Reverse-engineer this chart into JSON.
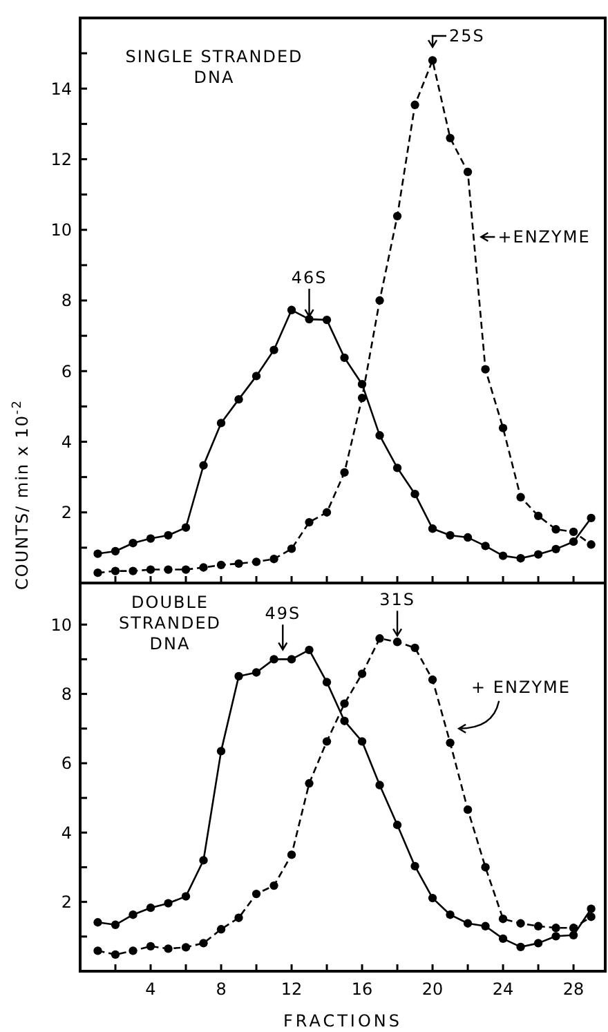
{
  "chart_data": [
    {
      "type": "line",
      "ylabel": "COUNTS/ min x 10$^{-2}$",
      "marker": "circle",
      "grid": false,
      "tick_labels": "y",
      "x": [
        1,
        2,
        3,
        4,
        5,
        6,
        7,
        8,
        9,
        10,
        11,
        12,
        13,
        14,
        15,
        16,
        17,
        18,
        19,
        20,
        21,
        22,
        23,
        24,
        25,
        26,
        27,
        28,
        29
      ],
      "xlim": [
        0,
        29.8
      ],
      "xticks": [
        {
          "value": 2,
          "label": null
        },
        4,
        {
          "value": 6,
          "label": null
        },
        8,
        {
          "value": 10,
          "label": null
        },
        12,
        {
          "value": 14,
          "label": null
        },
        16,
        {
          "value": 18,
          "label": null
        },
        20,
        {
          "value": 22,
          "label": null
        },
        24,
        {
          "value": 26,
          "label": null
        },
        28
      ],
      "ylim": [
        0,
        16
      ],
      "yticks": [
        {
          "value": 1,
          "label": null
        },
        2,
        {
          "value": 3,
          "label": null
        },
        4,
        {
          "value": 5,
          "label": null
        },
        6,
        {
          "value": 7,
          "label": null
        },
        8,
        {
          "value": 9,
          "label": null
        },
        10,
        {
          "value": 11,
          "label": null
        },
        12,
        {
          "value": 13,
          "label": null
        },
        14,
        {
          "value": 15,
          "label": null
        }
      ],
      "series": [
        {
          "color": "#000000",
          "line_style": "solid",
          "values": [
            0.83,
            0.9,
            1.13,
            1.26,
            1.35,
            1.57,
            3.33,
            4.53,
            5.2,
            5.86,
            6.6,
            7.73,
            7.47,
            7.45,
            6.38,
            5.63,
            4.18,
            3.26,
            2.52,
            1.54,
            1.35,
            1.29,
            1.05,
            0.77,
            0.7,
            0.81,
            0.96,
            1.17,
            1.84
          ]
        },
        {
          "color": "#000000",
          "line_style": "dashed",
          "values": [
            0.29,
            0.34,
            0.34,
            0.38,
            0.38,
            0.38,
            0.44,
            0.51,
            0.55,
            0.6,
            0.68,
            0.97,
            1.72,
            2.0,
            3.13,
            5.24,
            8.0,
            10.39,
            13.54,
            14.8,
            12.6,
            11.64,
            6.05,
            4.39,
            2.43,
            1.9,
            1.52,
            1.45,
            1.09
          ]
        }
      ],
      "annotations": [
        "SINGLE STRANDED DNA",
        {
          "text": "46S",
          "x": 13,
          "y": 7.47
        },
        {
          "text": "25S",
          "x": 20,
          "y": 15.1
        },
        {
          "text": "+ENZYME",
          "x": 22.6,
          "y": 9.8
        }
      ]
    },
    {
      "type": "line",
      "xlabel": "FRACTIONS",
      "marker": "circle",
      "grid": false,
      "x": [
        1,
        2,
        3,
        4,
        5,
        6,
        7,
        8,
        9,
        10,
        11,
        12,
        13,
        14,
        15,
        16,
        17,
        18,
        19,
        20,
        21,
        22,
        23,
        24,
        25,
        26,
        27,
        28,
        29
      ],
      "xlim": [
        0,
        29.8
      ],
      "xticks": [
        {
          "value": 2,
          "label": null
        },
        4,
        {
          "value": 6,
          "label": null
        },
        8,
        {
          "value": 10,
          "label": null
        },
        12,
        {
          "value": 14,
          "label": null
        },
        16,
        {
          "value": 18,
          "label": null
        },
        20,
        {
          "value": 22,
          "label": null
        },
        24,
        {
          "value": 26,
          "label": null
        },
        28
      ],
      "ylim": [
        0,
        11.2
      ],
      "yticks": [
        {
          "value": 1,
          "label": null
        },
        2,
        {
          "value": 3,
          "label": null
        },
        4,
        {
          "value": 5,
          "label": null
        },
        6,
        {
          "value": 7,
          "label": null
        },
        8,
        {
          "value": 9,
          "label": null
        },
        10
      ],
      "series": [
        {
          "color": "#000000",
          "line_style": "solid",
          "values": [
            1.41,
            1.34,
            1.63,
            1.83,
            1.96,
            2.16,
            3.2,
            6.35,
            8.51,
            8.62,
            9.0,
            9.0,
            9.27,
            8.34,
            7.22,
            6.63,
            5.37,
            4.22,
            3.03,
            2.11,
            1.63,
            1.38,
            1.3,
            0.94,
            0.7,
            0.81,
            1.01,
            1.04,
            1.8
          ]
        },
        {
          "color": "#000000",
          "line_style": "dashed",
          "values": [
            0.59,
            0.48,
            0.59,
            0.72,
            0.65,
            0.69,
            0.81,
            1.21,
            1.54,
            2.23,
            2.47,
            3.36,
            5.42,
            6.63,
            7.72,
            8.58,
            9.6,
            9.5,
            9.33,
            8.41,
            6.59,
            4.66,
            3.0,
            1.51,
            1.38,
            1.3,
            1.25,
            1.25,
            1.57
          ]
        }
      ],
      "annotations": [
        "DOUBLE STRANDED DNA",
        {
          "text": "49S",
          "x": 11.5,
          "y": 9.2
        },
        {
          "text": "31S",
          "x": 18,
          "y": 9.6
        },
        {
          "text": "+ ENZYME",
          "x": 21.1,
          "y": 7.0
        }
      ]
    }
  ]
}
